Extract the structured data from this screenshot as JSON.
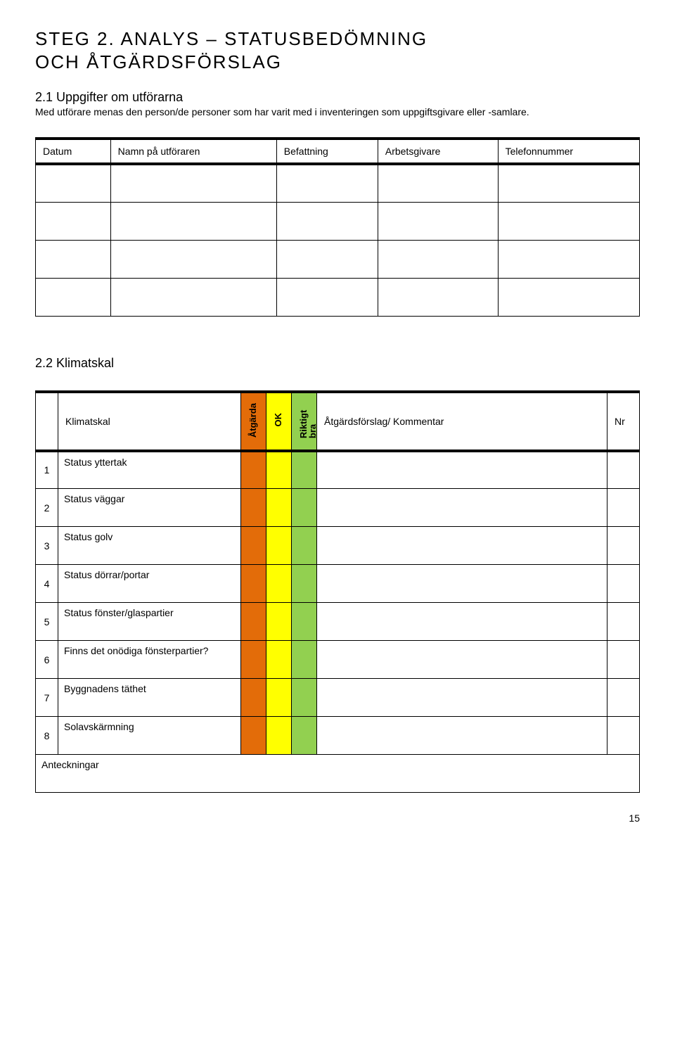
{
  "title_line1": "STEG 2. ANALYS – STATUSBEDÖMNING",
  "title_line2": "OCH ÅTGÄRDSFÖRSLAG",
  "section_2_1": {
    "heading": "2.1 Uppgifter om utförarna",
    "desc": "Med utförare menas den person/de personer som har varit med i inventeringen som uppgiftsgivare eller -samlare.",
    "headers": [
      "Datum",
      "Namn på utföraren",
      "Befattning",
      "Arbetsgivare",
      "Telefonnummer"
    ],
    "rows": 4
  },
  "section_2_2": {
    "heading": "2.2 Klimatskal",
    "table_title": "Klimatskal",
    "col_atgarda": "Åtgärda",
    "col_ok": "OK",
    "col_riktigt": "Riktigt bra",
    "col_komm": "Åtgärdsförslag/ Kommentar",
    "col_nr": "Nr",
    "colors": {
      "atgarda": "#e36c09",
      "ok": "#ffff00",
      "riktigt": "#92d050"
    },
    "items": [
      {
        "n": "1",
        "label": "Status yttertak"
      },
      {
        "n": "2",
        "label": "Status väggar"
      },
      {
        "n": "3",
        "label": "Status golv"
      },
      {
        "n": "4",
        "label": "Status dörrar/portar"
      },
      {
        "n": "5",
        "label": "Status fönster/glaspartier"
      },
      {
        "n": "6",
        "label": "Finns det onödiga fönsterpartier?"
      },
      {
        "n": "7",
        "label": "Byggnadens täthet"
      },
      {
        "n": "8",
        "label": "Solavskärmning"
      }
    ],
    "footer_label": "Anteckningar"
  },
  "page_number": "15"
}
